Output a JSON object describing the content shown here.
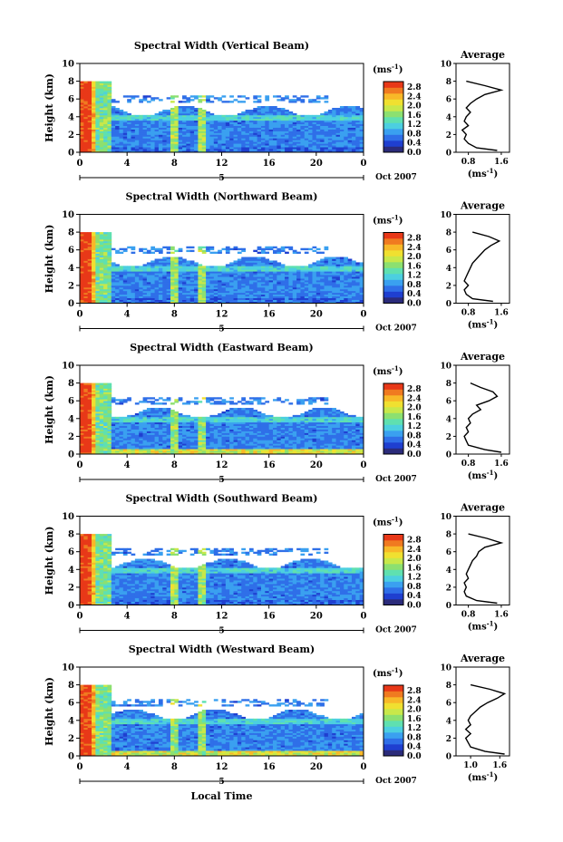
{
  "footer": {
    "xlabel": "Local Time"
  },
  "colorbar": {
    "unit_base": "(ms",
    "unit_exp": "-1",
    "unit_close": ")",
    "ticks": [
      "2.8",
      "2.4",
      "2.0",
      "1.6",
      "1.2",
      "0.8",
      "0.4",
      "0.0"
    ],
    "colors": [
      "#2b2b7a",
      "#1f3fd0",
      "#2f6fe8",
      "#3aa0f0",
      "#4ccfe0",
      "#5fe0b0",
      "#8ce070",
      "#c8e84a",
      "#f0e030",
      "#f8b828",
      "#f07a20",
      "#e83818"
    ]
  },
  "chart_data": [
    {
      "type": "heatmap",
      "title": "Spectral Width (Vertical Beam)",
      "ylabel": "Height (km)",
      "ylim": [
        0,
        10
      ],
      "xlim": [
        0,
        24
      ],
      "yticks": [
        "10",
        "8",
        "6",
        "4",
        "2",
        "0"
      ],
      "xticks": [
        "0",
        "4",
        "8",
        "12",
        "16",
        "20",
        "0"
      ],
      "date_ticks": [
        "5"
      ],
      "date_label": "Oct 2007",
      "profile": {
        "title": "Average",
        "xticks": [
          "0.8",
          "1.6"
        ],
        "xlim": [
          0.5,
          1.8
        ],
        "unit_base": "(ms",
        "unit_exp": "-1",
        "unit_close": ")",
        "heights": [
          0.2,
          0.5,
          1.0,
          1.5,
          2.0,
          2.5,
          3.0,
          3.5,
          4.0,
          4.5,
          5.0,
          5.5,
          6.0,
          6.5,
          7.0,
          7.5,
          8.0
        ],
        "values": [
          1.5,
          1.0,
          0.8,
          0.7,
          0.75,
          0.65,
          0.8,
          0.7,
          0.75,
          0.85,
          0.75,
          0.85,
          1.0,
          1.2,
          1.6,
          1.2,
          0.75
        ]
      }
    },
    {
      "type": "heatmap",
      "title": "Spectral Width (Northward Beam)",
      "ylabel": "Height (km)",
      "ylim": [
        0,
        10
      ],
      "xlim": [
        0,
        24
      ],
      "yticks": [
        "10",
        "8",
        "6",
        "4",
        "2",
        "0"
      ],
      "xticks": [
        "0",
        "4",
        "8",
        "12",
        "16",
        "20",
        "0"
      ],
      "date_ticks": [
        "5"
      ],
      "date_label": "Oct 2007",
      "profile": {
        "title": "Average",
        "xticks": [
          "0.8",
          "1.6"
        ],
        "xlim": [
          0.5,
          1.8
        ],
        "unit_base": "(ms",
        "unit_exp": "-1",
        "unit_close": ")",
        "heights": [
          0.2,
          0.5,
          1.0,
          1.5,
          2.0,
          2.5,
          3.0,
          3.5,
          4.0,
          4.5,
          5.0,
          5.5,
          6.0,
          6.5,
          7.0,
          7.5,
          8.0
        ],
        "values": [
          1.4,
          0.9,
          0.75,
          0.7,
          0.8,
          0.7,
          0.75,
          0.8,
          0.85,
          0.9,
          1.0,
          1.1,
          1.2,
          1.35,
          1.55,
          1.3,
          0.9
        ]
      }
    },
    {
      "type": "heatmap",
      "title": "Spectral Width (Eastward Beam)",
      "ylabel": "Height (km)",
      "ylim": [
        0,
        10
      ],
      "xlim": [
        0,
        24
      ],
      "yticks": [
        "10",
        "8",
        "6",
        "4",
        "2",
        "0"
      ],
      "xticks": [
        "0",
        "4",
        "8",
        "12",
        "16",
        "20",
        "0"
      ],
      "date_ticks": [
        "5"
      ],
      "date_label": "Oct 2007",
      "profile": {
        "title": "Average",
        "xticks": [
          "0.8",
          "1.6"
        ],
        "xlim": [
          0.5,
          1.8
        ],
        "unit_base": "(ms",
        "unit_exp": "-1",
        "unit_close": ")",
        "heights": [
          0.2,
          0.5,
          1.0,
          1.5,
          2.0,
          2.5,
          3.0,
          3.5,
          4.0,
          4.5,
          5.0,
          5.5,
          6.0,
          6.5,
          7.0,
          7.5,
          8.0
        ],
        "values": [
          1.6,
          1.2,
          0.8,
          0.75,
          0.7,
          0.8,
          0.75,
          0.85,
          0.8,
          0.9,
          1.1,
          1.0,
          1.3,
          1.5,
          1.4,
          1.1,
          0.85
        ]
      }
    },
    {
      "type": "heatmap",
      "title": "Spectral Width (Southward Beam)",
      "ylabel": "Height (km)",
      "ylim": [
        0,
        10
      ],
      "xlim": [
        0,
        24
      ],
      "yticks": [
        "10",
        "8",
        "6",
        "4",
        "2",
        "0"
      ],
      "xticks": [
        "0",
        "4",
        "8",
        "12",
        "16",
        "20",
        "0"
      ],
      "date_ticks": [
        "5"
      ],
      "date_label": "Oct 2007",
      "profile": {
        "title": "Average",
        "xticks": [
          "0.8",
          "1.6"
        ],
        "xlim": [
          0.5,
          1.8
        ],
        "unit_base": "(ms",
        "unit_exp": "-1",
        "unit_close": ")",
        "heights": [
          0.2,
          0.5,
          1.0,
          1.5,
          2.0,
          2.5,
          3.0,
          3.5,
          4.0,
          4.5,
          5.0,
          5.5,
          6.0,
          6.5,
          7.0,
          7.5,
          8.0
        ],
        "values": [
          1.5,
          1.0,
          0.75,
          0.7,
          0.75,
          0.7,
          0.8,
          0.75,
          0.8,
          0.85,
          0.9,
          1.0,
          1.05,
          1.2,
          1.6,
          1.25,
          0.8
        ]
      }
    },
    {
      "type": "heatmap",
      "title": "Spectral Width (Westward Beam)",
      "ylabel": "Height (km)",
      "ylim": [
        0,
        10
      ],
      "xlim": [
        0,
        24
      ],
      "yticks": [
        "10",
        "8",
        "6",
        "4",
        "2",
        "0"
      ],
      "xticks": [
        "0",
        "4",
        "8",
        "12",
        "16",
        "20",
        "0"
      ],
      "date_ticks": [
        "5"
      ],
      "date_label": "Oct 2007",
      "profile": {
        "title": "Average",
        "xticks": [
          "1.0",
          "1.6"
        ],
        "xlim": [
          0.7,
          1.8
        ],
        "unit_base": "(ms",
        "unit_exp": "-1",
        "unit_close": ")",
        "heights": [
          0.2,
          0.5,
          1.0,
          1.5,
          2.0,
          2.5,
          3.0,
          3.5,
          4.0,
          4.5,
          5.0,
          5.5,
          6.0,
          6.5,
          7.0,
          7.5,
          8.0
        ],
        "values": [
          1.7,
          1.3,
          1.0,
          0.95,
          0.9,
          1.0,
          0.9,
          1.0,
          0.95,
          1.0,
          1.1,
          1.2,
          1.35,
          1.55,
          1.7,
          1.4,
          1.0
        ]
      }
    }
  ]
}
